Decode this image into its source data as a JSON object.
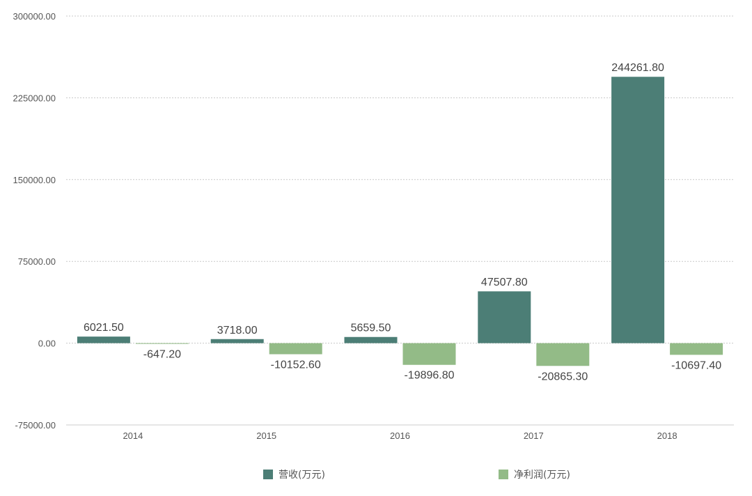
{
  "chart_data": {
    "type": "bar",
    "categories": [
      "2014",
      "2015",
      "2016",
      "2017",
      "2018"
    ],
    "series": [
      {
        "name": "营收(万元)",
        "color": "#4c7e76",
        "values": [
          6021.5,
          3718.0,
          5659.5,
          47507.8,
          244261.8
        ],
        "labels": [
          "6021.50",
          "3718.00",
          "5659.50",
          "47507.80",
          "244261.80"
        ]
      },
      {
        "name": "净利润(万元)",
        "color": "#93bb87",
        "values": [
          -647.2,
          -10152.6,
          -19896.8,
          -20865.3,
          -10697.4
        ],
        "labels": [
          "-647.20",
          "-10152.60",
          "-19896.80",
          "-20865.30",
          "-10697.40"
        ]
      }
    ],
    "ylim": [
      -75000,
      300000
    ],
    "yticks": [
      -75000,
      0,
      75000,
      150000,
      225000,
      300000
    ],
    "ytick_labels": [
      "-75000.00",
      "0.00",
      "75000.00",
      "150000.00",
      "225000.00",
      "300000.00"
    ],
    "grid": true,
    "legend_position": "bottom-center",
    "title": "",
    "xlabel": "",
    "ylabel": ""
  }
}
